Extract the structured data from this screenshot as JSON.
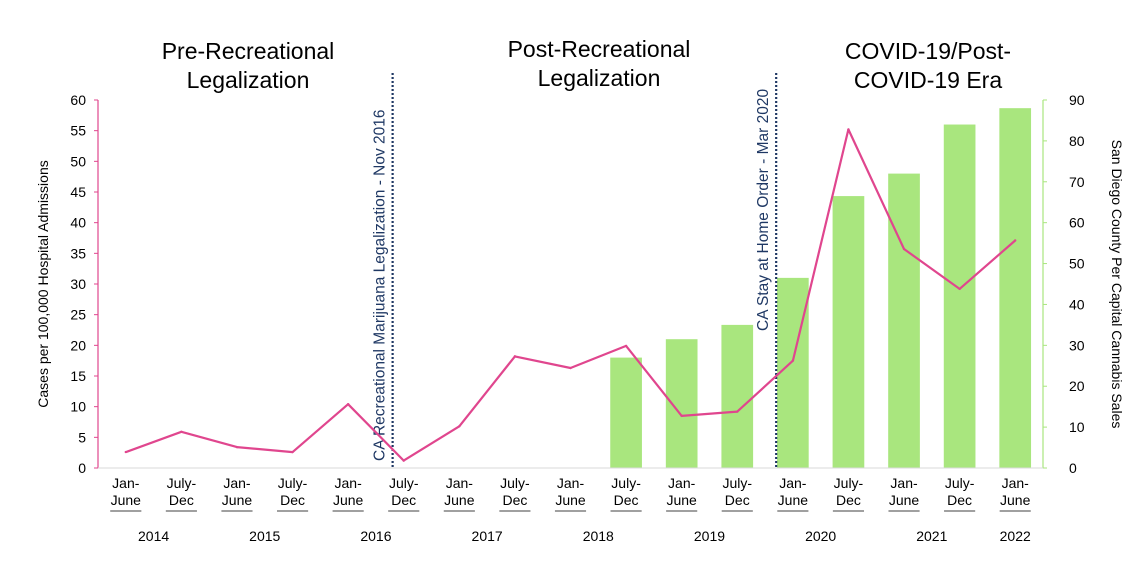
{
  "eras": [
    {
      "label": "Pre-Recreational\nLegalization"
    },
    {
      "label": "Post-Recreational\nLegalization"
    },
    {
      "label": "COVID-19/Post-\nCOVID-19 Era"
    }
  ],
  "chart_data": {
    "type": "bar+line",
    "categories": [
      "Jan-\nJune",
      "July-\nDec",
      "Jan-\nJune",
      "July-\nDec",
      "Jan-\nJune",
      "July-\nDec",
      "Jan-\nJune",
      "July-\nDec",
      "Jan-\nJune",
      "July-\nDec",
      "Jan-\nJune",
      "July-\nDec",
      "Jan-\nJune",
      "July-\nDec",
      "Jan-\nJune",
      "July-\nDec",
      "Jan-\nJune"
    ],
    "years": [
      "2014",
      "2015",
      "2016",
      "2017",
      "2018",
      "2019",
      "2020",
      "2021",
      "2022"
    ],
    "ylabel": "Cases per 100,000 Hospital Admissions",
    "y2label": "San Diego County Per Capital Cannabis Sales",
    "ylim": [
      0,
      60
    ],
    "y2lim": [
      0,
      90
    ],
    "yticks": [
      0,
      5,
      10,
      15,
      20,
      25,
      30,
      35,
      40,
      45,
      50,
      55,
      60
    ],
    "y2ticks": [
      0,
      10,
      20,
      30,
      40,
      50,
      60,
      70,
      80,
      90
    ],
    "series": [
      {
        "type": "bar",
        "axis": "right",
        "color": "#a9e67e",
        "values": [
          null,
          null,
          null,
          null,
          null,
          null,
          null,
          null,
          null,
          27,
          31.5,
          35,
          46.5,
          66.5,
          72,
          84,
          88
        ]
      },
      {
        "type": "line",
        "axis": "left",
        "color": "#e0468e",
        "values": [
          2.6,
          5.9,
          3.4,
          2.6,
          10.4,
          1.2,
          6.8,
          18.2,
          16.3,
          19.9,
          8.5,
          9.2,
          17.5,
          55.2,
          35.7,
          29.2,
          37.1
        ]
      }
    ],
    "annotations": [
      {
        "text": "CA Recreational Marijuana Legalization - Nov 2016",
        "after_index": 5.3
      },
      {
        "text": "CA Stay at Home Order - Mar 2020",
        "after_index": 12.2
      }
    ],
    "grid": false,
    "legend": "none"
  }
}
